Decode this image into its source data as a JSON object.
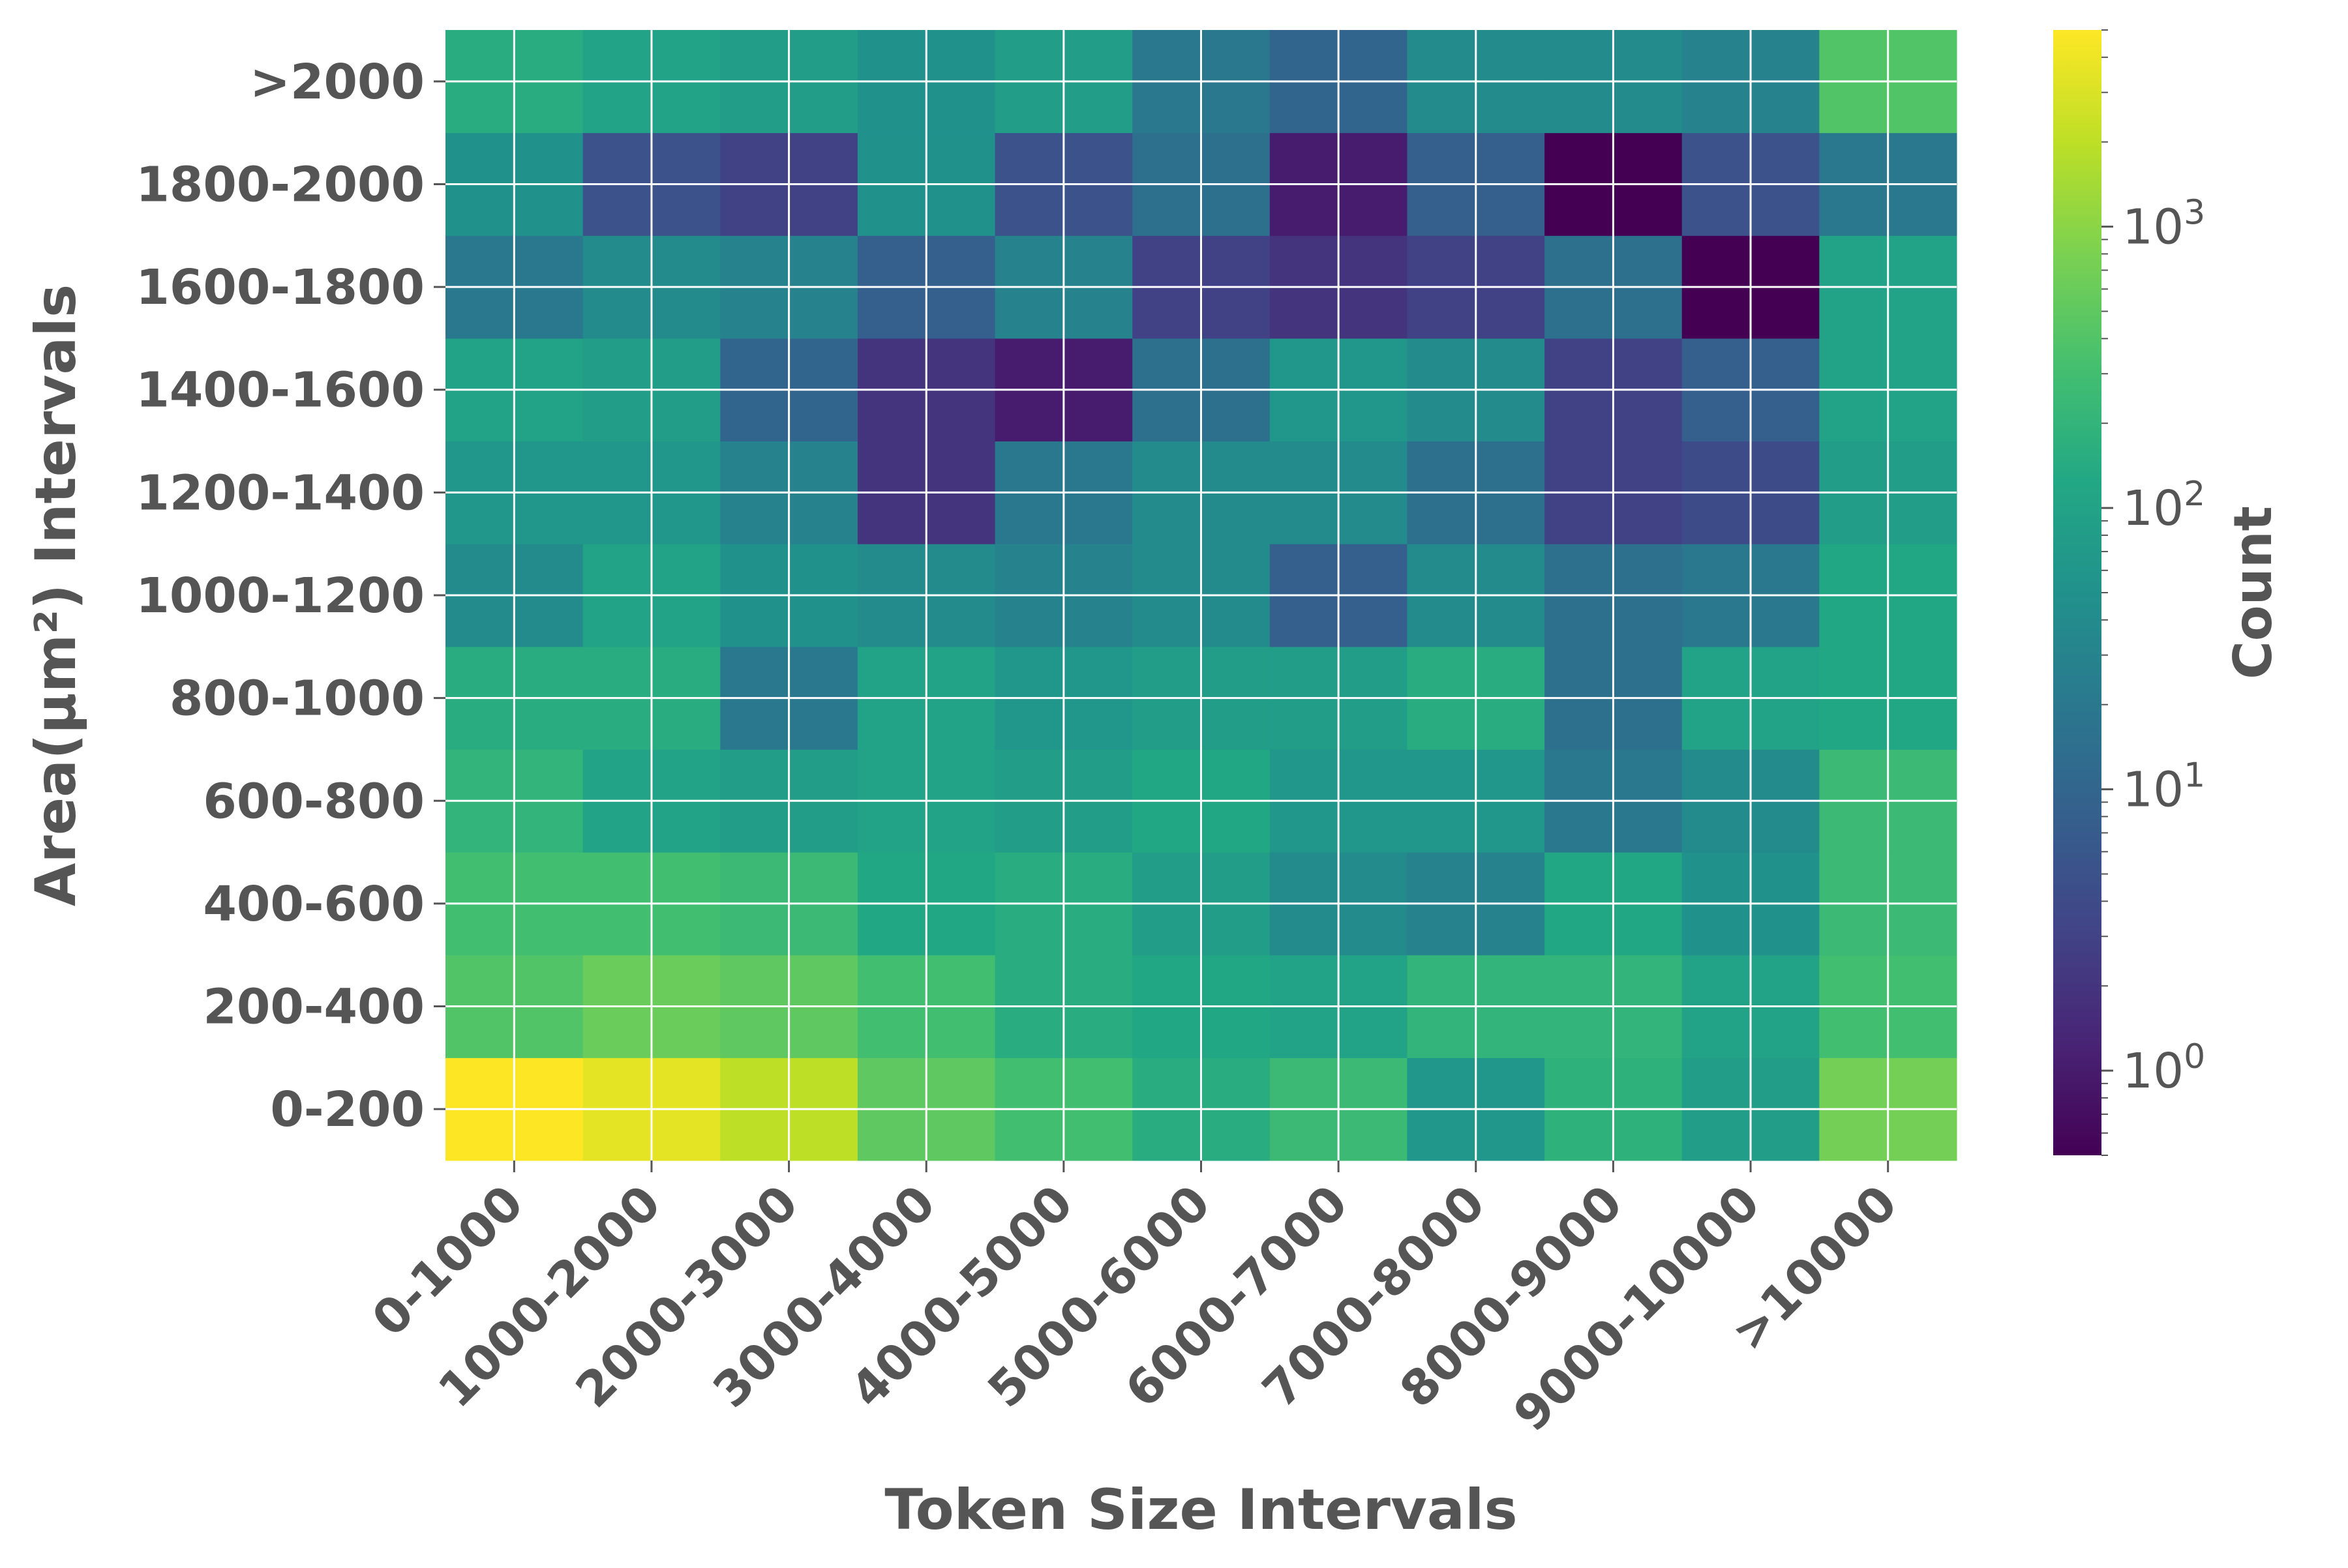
{
  "chart_data": {
    "type": "heatmap",
    "xlabel": "Token Size Intervals",
    "ylabel": "Area(μm²) Intervals",
    "x_categories": [
      "0-1000",
      "1000-2000",
      "2000-3000",
      "3000-4000",
      "4000-5000",
      "5000-6000",
      "6000-7000",
      "7000-8000",
      "8000-9000",
      "9000-10000",
      ">10000"
    ],
    "y_categories": [
      "0-200",
      "200-400",
      "400-600",
      "600-800",
      "800-1000",
      "1000-1200",
      "1200-1400",
      "1400-1600",
      "1600-1800",
      "1800-2000",
      ">2000"
    ],
    "values": [
      [
        5000,
        3500,
        2000,
        500,
        300,
        150,
        250,
        60,
        180,
        80,
        700
      ],
      [
        400,
        600,
        500,
        300,
        150,
        120,
        100,
        200,
        200,
        100,
        300
      ],
      [
        300,
        300,
        250,
        120,
        150,
        80,
        40,
        30,
        120,
        50,
        250
      ],
      [
        200,
        100,
        80,
        100,
        80,
        120,
        60,
        60,
        20,
        40,
        250
      ],
      [
        150,
        150,
        20,
        100,
        60,
        80,
        80,
        150,
        15,
        100,
        120
      ],
      [
        40,
        100,
        50,
        40,
        30,
        40,
        8,
        40,
        15,
        20,
        120
      ],
      [
        60,
        60,
        30,
        2,
        20,
        40,
        40,
        15,
        3,
        4,
        80
      ],
      [
        100,
        80,
        10,
        2,
        1,
        15,
        60,
        40,
        3,
        8,
        100
      ],
      [
        20,
        40,
        30,
        8,
        30,
        3,
        2,
        3,
        15,
        0.5,
        100
      ],
      [
        50,
        5,
        3,
        50,
        5,
        15,
        1,
        8,
        0.5,
        5,
        20
      ],
      [
        150,
        100,
        80,
        50,
        80,
        20,
        10,
        40,
        40,
        30,
        400
      ]
    ],
    "color_scale": "log",
    "colormap": "viridis",
    "colorbar": {
      "title": "Count",
      "range": [
        0.5,
        5000
      ],
      "ticks": [
        1,
        10,
        100,
        1000
      ],
      "tick_labels": [
        "10^0",
        "10^1",
        "10^2",
        "10^3"
      ]
    },
    "grid": true,
    "grid_color": "#ffffff"
  }
}
